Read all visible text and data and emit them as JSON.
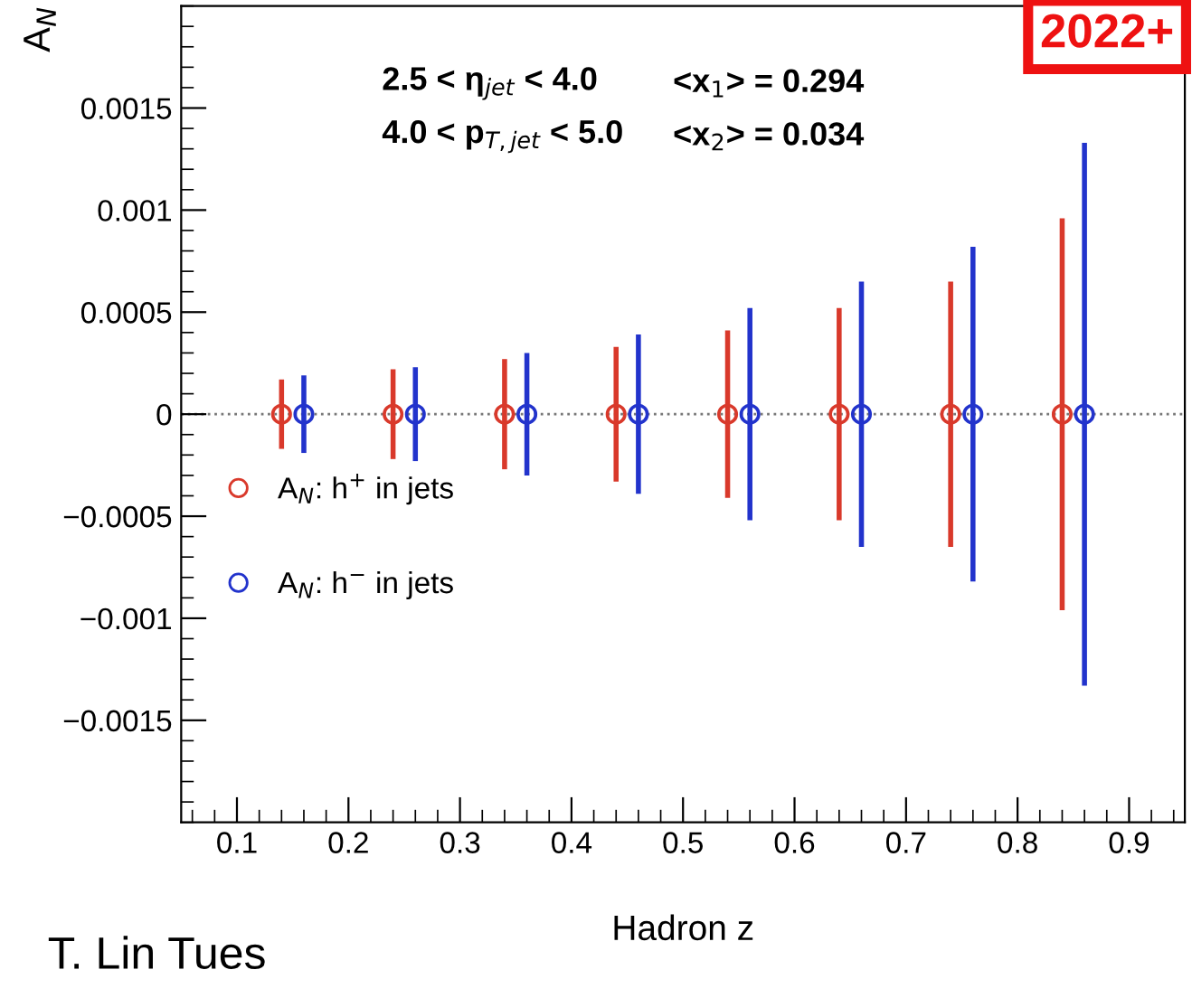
{
  "chart_data": {
    "type": "scatter",
    "xlabel": "Hadron z",
    "ylabel": "A$_{N}$",
    "xlim": [
      0.05,
      0.95
    ],
    "xticks": [
      0.1,
      0.2,
      0.3,
      0.4,
      0.5,
      0.6,
      0.7,
      0.8,
      0.9
    ],
    "ylim": [
      -0.002,
      0.002
    ],
    "yticks": [
      {
        "value": -0.0015,
        "label": "−0.0015"
      },
      {
        "value": -0.001,
        "label": "−0.001"
      },
      {
        "value": -0.0005,
        "label": "−0.0005"
      },
      0,
      0.0005,
      0.001,
      0.0015
    ],
    "marker": "circle",
    "legend": "left",
    "grid": false,
    "series": [
      {
        "name": "A$_{N}$: h$^{+}$ in jets",
        "color": "#d9392b",
        "x": [
          0.14,
          0.24,
          0.34,
          0.44,
          0.54,
          0.64,
          0.74,
          0.84
        ],
        "values": [
          0,
          0,
          0,
          0,
          0,
          0,
          0,
          0
        ],
        "errors": [
          0.00017,
          0.00022,
          0.00027,
          0.00033,
          0.00041,
          0.00052,
          0.00065,
          0.00096
        ]
      },
      {
        "name": "A$_{N}$: h$^{−}$ in jets",
        "color": "#2233cc",
        "x": [
          0.16,
          0.26,
          0.36,
          0.46,
          0.56,
          0.66,
          0.76,
          0.86
        ],
        "values": [
          0,
          0,
          0,
          0,
          0,
          0,
          0,
          0
        ],
        "errors": [
          0.00019,
          0.00023,
          0.0003,
          0.00039,
          0.00052,
          0.00065,
          0.00082,
          0.00133
        ]
      }
    ],
    "ref_lines": [
      {
        "axis": "y",
        "value": 0,
        "color": "#777777",
        "line_style": "dotted"
      }
    ],
    "annotations": [
      "2.5 < η$_{jet}$ < 4.0",
      "<x$_{1}$> = 0.294",
      "4.0 < p$_{T,jet}$ < 5.0",
      "<x$_{2}$> = 0.034",
      "2022+",
      "T. Lin Tues"
    ]
  }
}
